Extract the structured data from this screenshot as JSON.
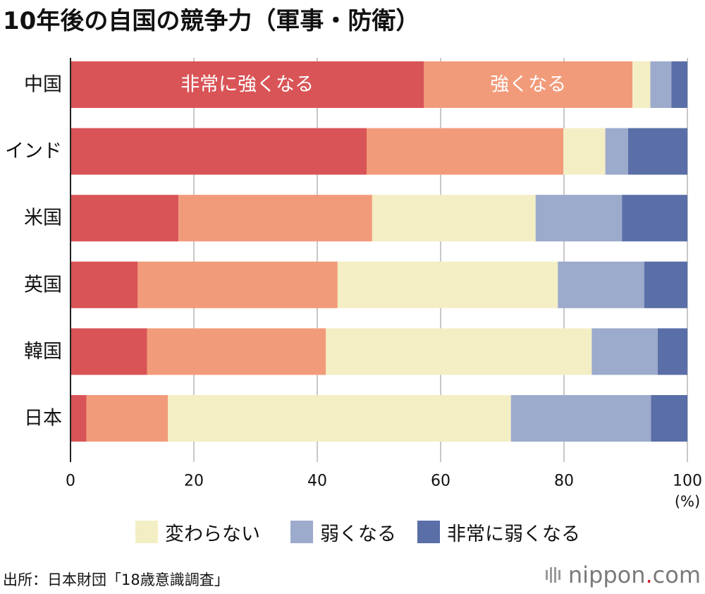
{
  "title": "10年後の自国の競争力（軍事・防衛）",
  "source": "出所：日本財団「18歳意識調査」",
  "brand": {
    "name": "nippon",
    "dot": ".",
    "suffix": "com"
  },
  "chart_data": {
    "type": "bar",
    "orientation": "horizontal",
    "stacked": true,
    "title": "10年後の自国の競争力（軍事・防衛）",
    "categories": [
      "中国",
      "インド",
      "米国",
      "英国",
      "韓国",
      "日本"
    ],
    "series": [
      {
        "name": "非常に強くなる",
        "color": "#d95457",
        "values": [
          57.3,
          48.0,
          17.5,
          10.9,
          12.4,
          2.6
        ]
      },
      {
        "name": "強くなる",
        "color": "#f29b7a",
        "values": [
          33.8,
          31.9,
          31.4,
          32.4,
          29.0,
          13.2
        ]
      },
      {
        "name": "変わらない",
        "color": "#f3eec4",
        "values": [
          2.9,
          6.8,
          26.5,
          35.7,
          43.1,
          55.6
        ]
      },
      {
        "name": "弱くなる",
        "color": "#9caacb",
        "values": [
          3.4,
          3.7,
          14.0,
          14.0,
          10.7,
          22.7
        ]
      },
      {
        "name": "非常に弱くなる",
        "color": "#5a6ea7",
        "values": [
          2.6,
          9.6,
          10.6,
          7.0,
          4.8,
          5.9
        ]
      }
    ],
    "in_bar_labels": [
      {
        "series": 0,
        "category": 0,
        "text": "非常に強くなる"
      },
      {
        "series": 1,
        "category": 0,
        "text": "強くなる"
      }
    ],
    "xlim": [
      0,
      100
    ],
    "xticks": [
      0,
      20,
      40,
      60,
      80,
      100
    ],
    "unit_label": "(%)",
    "grid": true,
    "legend": {
      "placement": "bottom",
      "entries": [
        2,
        3,
        4
      ]
    }
  }
}
